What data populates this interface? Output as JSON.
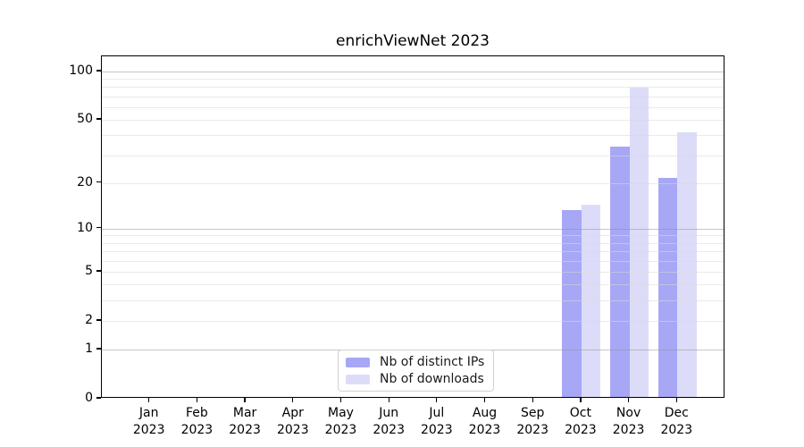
{
  "chart_data": {
    "type": "bar",
    "title": "enrichViewNet 2023",
    "year": "2023",
    "months": [
      "Jan",
      "Feb",
      "Mar",
      "Apr",
      "May",
      "Jun",
      "Jul",
      "Aug",
      "Sep",
      "Oct",
      "Nov",
      "Dec"
    ],
    "series": [
      {
        "name": "Nb of distinct IPs",
        "color": "#a7a7f6",
        "values": [
          0,
          0,
          0,
          0,
          0,
          0,
          0,
          0,
          0,
          13,
          33,
          21
        ]
      },
      {
        "name": "Nb of downloads",
        "color": "#dcdcf9",
        "values": [
          0,
          0,
          0,
          0,
          0,
          0,
          0,
          0,
          0,
          14,
          77,
          41
        ]
      }
    ],
    "yscale": "symlog",
    "ylim": [
      0,
      124
    ],
    "yticks": [
      0,
      1,
      2,
      5,
      10,
      20,
      50,
      100
    ],
    "ytick_labels": [
      "0",
      "1",
      "2",
      "5",
      "10",
      "20",
      "50",
      "100"
    ],
    "major_gridline_values": [
      1,
      10,
      100
    ],
    "minor_gridline_values": [
      2,
      3,
      4,
      5,
      6,
      7,
      8,
      9,
      20,
      30,
      40,
      50,
      60,
      70,
      80,
      90
    ],
    "legend_position": "lower center",
    "grid": true,
    "colors": {
      "background": "#ffffff",
      "axis": "#000000",
      "major_grid": "#cacaca",
      "minor_grid": "#e9e9e9"
    }
  }
}
